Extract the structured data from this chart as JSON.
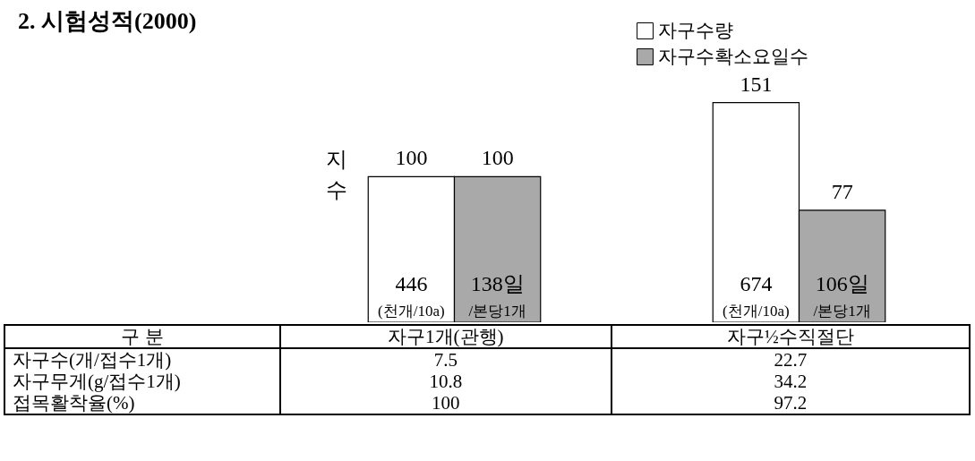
{
  "chart_data": {
    "type": "bar",
    "title": "2. 시험성적(2000)",
    "ylabel": "지수",
    "categories": [
      "자구1개(관행)",
      "자구½수직절단"
    ],
    "series": [
      {
        "name": "자구수량",
        "color": "#ffffff",
        "values": [
          100,
          151
        ]
      },
      {
        "name": "자구수확소요일수",
        "color": "#a9a9a9",
        "values": [
          100,
          77
        ]
      }
    ],
    "data_labels": true,
    "legend": "top right",
    "annotations": [
      "446",
      "(천개/10a)",
      "138일",
      "/본당1개",
      "674",
      "(천개/10a)",
      "106일",
      "/본당1개",
      "구 분",
      "자구수(개/접수1개)",
      "7.5",
      "22.7",
      "자구무게(g/접수1개)",
      "10.8",
      "34.2",
      "접목활착율(%)",
      "100",
      "97.2"
    ]
  }
}
